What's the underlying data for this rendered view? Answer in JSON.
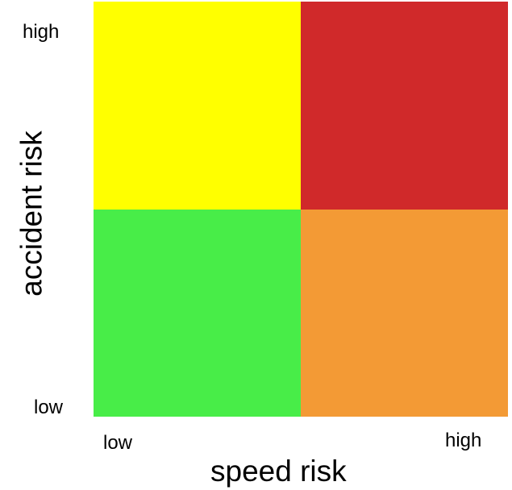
{
  "matrix": {
    "cells": {
      "high_accident_low_speed": {
        "color": "#FFFF00"
      },
      "high_accident_high_speed": {
        "color": "#D0292A"
      },
      "low_accident_low_speed": {
        "color": "#48ED48"
      },
      "low_accident_high_speed": {
        "color": "#F39A35"
      }
    }
  },
  "y_axis": {
    "title": "accident risk",
    "high_label": "high",
    "low_label": "low"
  },
  "x_axis": {
    "title": "speed risk",
    "low_label": "low",
    "high_label": "high"
  }
}
